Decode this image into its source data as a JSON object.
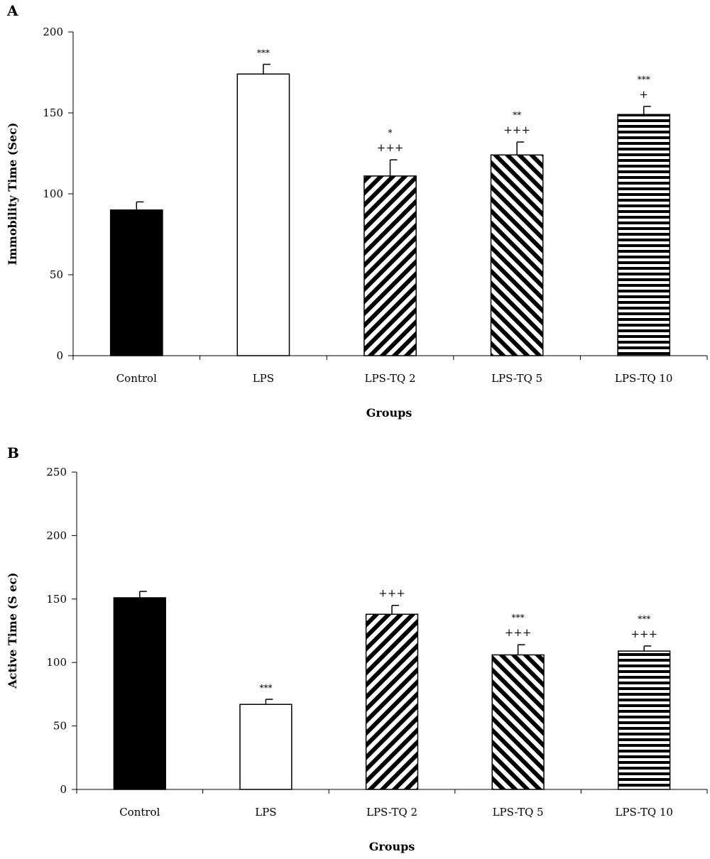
{
  "chart_data": [
    {
      "type": "bar",
      "panel": "A",
      "title": "",
      "xlabel": "Groups",
      "ylabel": "Immobility Time (Sec)",
      "ylim": [
        0,
        200
      ],
      "yticks": [
        0,
        50,
        100,
        150,
        200
      ],
      "grid": false,
      "legend": "none",
      "categories": [
        "Control",
        "LPS",
        "LPS-TQ 2",
        "LPS-TQ 5",
        "LPS-TQ 10"
      ],
      "values": [
        90,
        174,
        111,
        124,
        149
      ],
      "errors": [
        5,
        6,
        10,
        8,
        5
      ],
      "fills": [
        "solid-black",
        "white",
        "diagonal-stripe-up",
        "diagonal-stripe-down",
        "horizontal-stripe"
      ],
      "annotations": [
        [],
        [
          "***"
        ],
        [
          "*",
          "+++"
        ],
        [
          "**",
          "+++"
        ],
        [
          "***",
          "+"
        ]
      ]
    },
    {
      "type": "bar",
      "panel": "B",
      "title": "",
      "xlabel": "Groups",
      "ylabel": "Active Time (S ec)",
      "ylim": [
        0,
        250
      ],
      "yticks": [
        0,
        50,
        100,
        150,
        200,
        250
      ],
      "grid": false,
      "legend": "none",
      "categories": [
        "Control",
        "LPS",
        "LPS-TQ 2",
        "LPS-TQ 5",
        "LPS-TQ 10"
      ],
      "values": [
        151,
        67,
        138,
        106,
        109
      ],
      "errors": [
        5,
        4,
        7,
        8,
        4
      ],
      "fills": [
        "solid-black",
        "white",
        "diagonal-stripe-up",
        "diagonal-stripe-down",
        "horizontal-stripe"
      ],
      "annotations": [
        [],
        [
          "***"
        ],
        [
          "+++"
        ],
        [
          "***",
          "+++"
        ],
        [
          "***",
          "+++"
        ]
      ]
    }
  ]
}
